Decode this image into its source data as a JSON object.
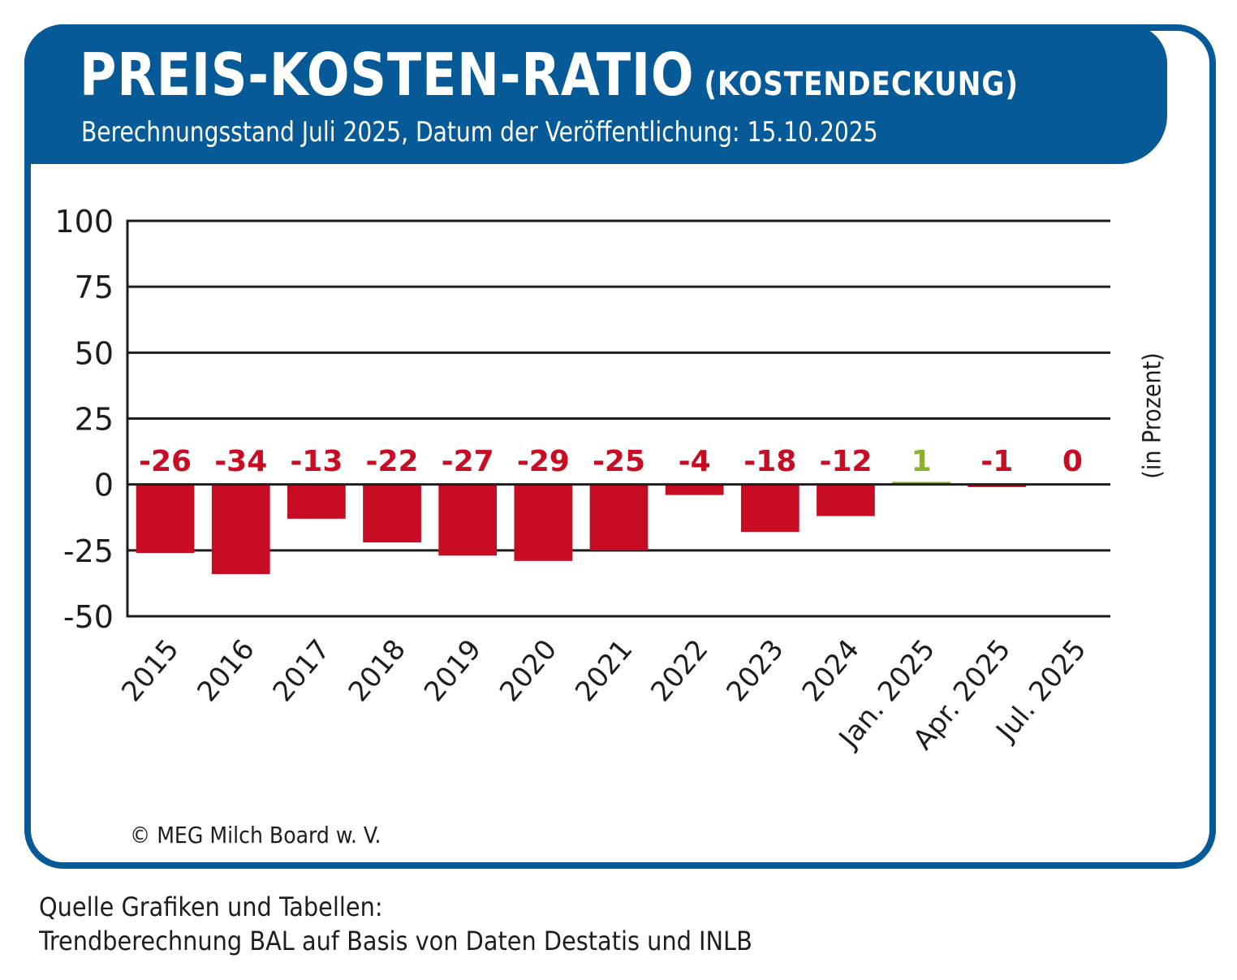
{
  "header": {
    "title": "PREIS-KOSTEN-RATIO",
    "title_suffix": "(KOSTENDECKUNG)",
    "subtitle": "Berechnungsstand Juli 2025, Datum der Veröffentlichung: 15.10.2025"
  },
  "colors": {
    "brand_blue": "#065a97",
    "negative": "#c70c24",
    "positive": "#8db12a",
    "axis": "#1d1d1b"
  },
  "chart_data": {
    "type": "bar",
    "title": "PREIS-KOSTEN-RATIO (KOSTENDECKUNG)",
    "subtitle": "Berechnungsstand Juli 2025, Datum der Veröffentlichung: 15.10.2025",
    "xlabel": "",
    "ylabel": "(in Prozent)",
    "categories": [
      "2015",
      "2016",
      "2017",
      "2018",
      "2019",
      "2020",
      "2021",
      "2022",
      "2023",
      "2024",
      "Jan. 2025",
      "Apr. 2025",
      "Jul. 2025"
    ],
    "values": [
      -26,
      -34,
      -13,
      -22,
      -27,
      -29,
      -25,
      -4,
      -18,
      -12,
      1,
      -1,
      0
    ],
    "data_labels": [
      "-26",
      "-34",
      "-13",
      "-22",
      "-27",
      "-29",
      "-25",
      "-4",
      "-18",
      "-12",
      "1",
      "-1",
      "0"
    ],
    "ylim": [
      -50,
      100
    ],
    "yticks": [
      100,
      75,
      50,
      25,
      0,
      -25,
      -50
    ],
    "ytick_labels": [
      "100",
      "75",
      "50",
      "25",
      "0",
      "-25",
      "-50"
    ],
    "grid": true,
    "legend": "none"
  },
  "footer": {
    "copyright": "© MEG Milch Board w. V.",
    "source_line1": "Quelle Grafiken und Tabellen:",
    "source_line2": "Trendberechnung BAL auf Basis von Daten Destatis und INLB"
  }
}
